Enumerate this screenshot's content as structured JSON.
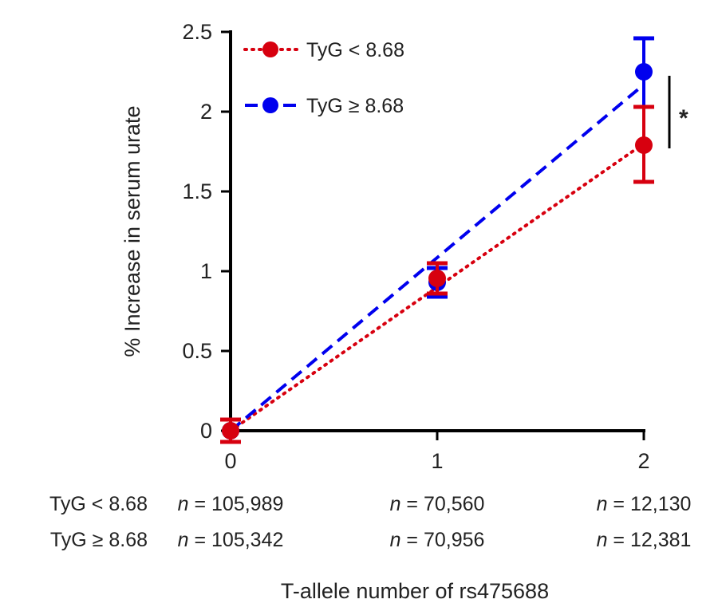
{
  "chart_data": {
    "type": "line",
    "title": "",
    "xlabel": "T-allele number of rs475688",
    "ylabel": "% Increase in serum urate",
    "x": [
      0,
      1,
      2
    ],
    "x_ticks": [
      "0",
      "1",
      "2"
    ],
    "y_ticks": [
      "0",
      "0.5",
      "1",
      "1.5",
      "2",
      "2.5"
    ],
    "ylim": [
      0,
      2.5
    ],
    "xlim": [
      0,
      2
    ],
    "grid": false,
    "legend_position": "top-left",
    "series": [
      {
        "name": "TyG < 8.68",
        "color": "#d7000f",
        "style": "dotted",
        "values": [
          0,
          0.955,
          1.79
        ],
        "err_low": [
          -0.07,
          0.86,
          1.56
        ],
        "err_high": [
          0.07,
          1.05,
          2.03
        ],
        "fit": [
          0,
          1.8
        ],
        "n_label": "TyG < 8.68",
        "n": [
          "105,989",
          "70,560",
          "12,130"
        ]
      },
      {
        "name": "TyG ≥ 8.68",
        "color": "#0000ee",
        "style": "dashed",
        "values": [
          0,
          0.93,
          2.25
        ],
        "err_low": [
          -0.07,
          0.84,
          2.03
        ],
        "err_high": [
          0.07,
          1.02,
          2.46
        ],
        "fit": [
          0,
          2.17
        ],
        "n_label": "TyG ≥ 8.68",
        "n": [
          "105,342",
          "70,956",
          "12,381"
        ]
      }
    ],
    "annotations": [
      {
        "text": "*",
        "between": "series at x=2"
      }
    ],
    "n_prefix": "n",
    "n_eq": " = "
  }
}
